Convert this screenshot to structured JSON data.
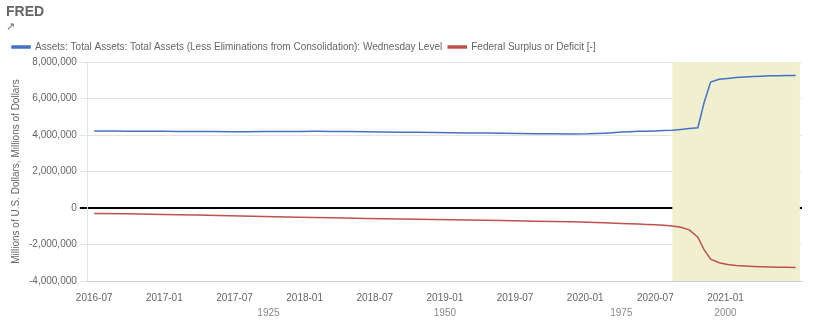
{
  "chart_data": {
    "type": "line",
    "title": "FRED",
    "subtitle": "↗",
    "y_label": "Millions of U.S. Dollars, Millions of Dollars",
    "legend": "top",
    "grid": "y",
    "xlim": [
      -3,
      333
    ],
    "xticks": [
      {
        "value": 0,
        "label": "2016-07"
      },
      {
        "value": 33,
        "label": "2017-01"
      },
      {
        "value": 66,
        "label": "2017-07"
      },
      {
        "value": 99,
        "label": "2018-01"
      },
      {
        "value": 132,
        "label": "2018-07"
      },
      {
        "value": 165,
        "label": "2019-01"
      },
      {
        "value": 198,
        "label": "2019-07"
      },
      {
        "value": 231,
        "label": "2020-01"
      },
      {
        "value": 264,
        "label": "2020-07"
      },
      {
        "value": 297,
        "label": "2021-01"
      }
    ],
    "ylim": [
      -4000000,
      8000000
    ],
    "yticks": [
      {
        "value": -4000000,
        "label": "-4,000,000"
      },
      {
        "value": -2000000,
        "label": "-2,000,000"
      },
      0,
      {
        "value": 2000000,
        "label": "2,000,000"
      },
      {
        "value": 4000000,
        "label": "4,000,000"
      },
      {
        "value": 6000000,
        "label": "6,000,000"
      },
      {
        "value": 8000000,
        "label": "8,000,000"
      }
    ],
    "shade": {
      "xmin": 272,
      "xmax": 332,
      "color": "#f0f0d0"
    },
    "annotations": [
      {
        "text": "1925",
        "x": 82
      },
      {
        "text": "1950",
        "x": 165
      },
      {
        "text": "1975",
        "x": 248
      },
      {
        "text": "2000",
        "x": 297
      }
    ],
    "series": [
      {
        "name": "Assets: Total Assets: Total Assets (Less Eliminations from Consolidation): Wednesday Level",
        "color": "#4472c4",
        "x": [
          0,
          8,
          16,
          24,
          32,
          40,
          48,
          56,
          64,
          72,
          80,
          88,
          96,
          104,
          112,
          120,
          128,
          136,
          144,
          152,
          160,
          168,
          176,
          184,
          192,
          200,
          208,
          216,
          224,
          232,
          236,
          240,
          244,
          248,
          252,
          256,
          260,
          264,
          268,
          272,
          276,
          280,
          284,
          287,
          290,
          294,
          298,
          302,
          306,
          310,
          314,
          318,
          322,
          326,
          330
        ],
        "values": [
          4220000,
          4215000,
          4210000,
          4205000,
          4200000,
          4195000,
          4190000,
          4185000,
          4180000,
          4180000,
          4185000,
          4190000,
          4195000,
          4200000,
          4195000,
          4185000,
          4175000,
          4165000,
          4155000,
          4145000,
          4135000,
          4125000,
          4115000,
          4105000,
          4095000,
          4085000,
          4075000,
          4065000,
          4060000,
          4065000,
          4080000,
          4100000,
          4130000,
          4160000,
          4180000,
          4200000,
          4210000,
          4220000,
          4240000,
          4260000,
          4300000,
          4350000,
          4400000,
          5800000,
          6900000,
          7050000,
          7100000,
          7150000,
          7180000,
          7200000,
          7220000,
          7240000,
          7250000,
          7260000,
          7265000
        ]
      },
      {
        "name": "Federal Surplus or Deficit [-]",
        "color": "#c0504d",
        "x": [
          0,
          16,
          32,
          48,
          64,
          80,
          96,
          112,
          128,
          144,
          160,
          176,
          192,
          208,
          224,
          232,
          240,
          248,
          256,
          260,
          264,
          268,
          272,
          276,
          280,
          284,
          287,
          290,
          294,
          298,
          302,
          306,
          310,
          314,
          318,
          322,
          326,
          330
        ],
        "values": [
          -300000,
          -320000,
          -350000,
          -390000,
          -430000,
          -470000,
          -510000,
          -540000,
          -570000,
          -600000,
          -630000,
          -660000,
          -690000,
          -720000,
          -750000,
          -780000,
          -810000,
          -850000,
          -880000,
          -900000,
          -920000,
          -950000,
          -980000,
          -1050000,
          -1200000,
          -1600000,
          -2300000,
          -2800000,
          -3000000,
          -3100000,
          -3150000,
          -3180000,
          -3200000,
          -3220000,
          -3230000,
          -3240000,
          -3250000,
          -3260000
        ]
      }
    ]
  }
}
